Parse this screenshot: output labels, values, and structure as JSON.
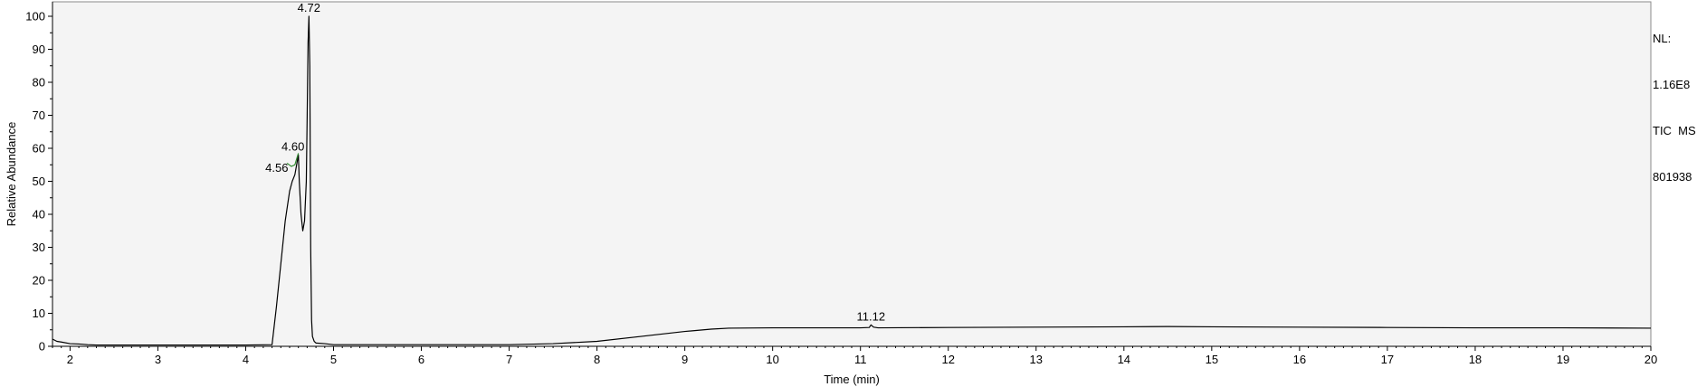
{
  "info": {
    "nl_label": "NL:",
    "nl_value": "1.16E8",
    "scan_filter": "TIC  MS",
    "sample": "801938"
  },
  "chart_data": {
    "type": "line",
    "title": "",
    "xlabel": "Time (min)",
    "ylabel": "Relative Abundance",
    "xlim": [
      1.8,
      20
    ],
    "ylim": [
      0,
      100
    ],
    "x_ticks": [
      2,
      3,
      4,
      5,
      6,
      7,
      8,
      9,
      10,
      11,
      12,
      13,
      14,
      15,
      16,
      17,
      18,
      19,
      20
    ],
    "y_ticks": [
      0,
      10,
      20,
      30,
      40,
      50,
      60,
      70,
      80,
      90,
      100
    ],
    "grid": false,
    "series": [
      {
        "color": "#000000",
        "x": [
          1.8,
          1.85,
          1.9,
          2.0,
          2.1,
          2.2,
          2.3,
          2.5,
          3.0,
          3.5,
          4.0,
          4.3,
          4.35,
          4.4,
          4.45,
          4.5,
          4.53,
          4.56,
          4.58,
          4.6,
          4.61,
          4.63,
          4.65,
          4.67,
          4.69,
          4.7,
          4.71,
          4.72,
          4.73,
          4.74,
          4.75,
          4.76,
          4.78,
          4.8,
          4.9,
          5.0,
          5.5,
          6.0,
          6.5,
          7.0,
          7.5,
          8.0,
          8.5,
          9.0,
          9.3,
          9.5,
          10.0,
          10.5,
          11.0,
          11.1,
          11.12,
          11.15,
          11.2,
          12.0,
          13.0,
          14.0,
          14.5,
          15.0,
          16.0,
          17.0,
          18.0,
          19.0,
          20.0
        ],
        "y": [
          2.2,
          1.5,
          1.3,
          0.8,
          0.7,
          0.5,
          0.4,
          0.4,
          0.4,
          0.4,
          0.4,
          0.5,
          12.0,
          25.0,
          38.0,
          47.0,
          50.0,
          52.0,
          55.0,
          58.0,
          50.0,
          40.0,
          35.0,
          38.0,
          50.0,
          70.0,
          92.0,
          100.0,
          85.0,
          30.0,
          8.0,
          3.0,
          1.5,
          1.0,
          0.8,
          0.5,
          0.5,
          0.5,
          0.5,
          0.5,
          0.8,
          1.5,
          3.0,
          4.5,
          5.2,
          5.5,
          5.6,
          5.6,
          5.6,
          5.7,
          6.5,
          5.8,
          5.6,
          5.7,
          5.8,
          5.9,
          6.0,
          5.9,
          5.8,
          5.7,
          5.6,
          5.6,
          5.5
        ]
      },
      {
        "color": "#2e8b2e",
        "x": [
          4.47,
          4.52,
          4.56,
          4.6
        ],
        "y": [
          55.5,
          54.5,
          55.0,
          58.5
        ]
      }
    ],
    "annotations": [
      {
        "text": "4.72",
        "x": 4.72,
        "y": 100
      },
      {
        "text": "4.60",
        "x": 4.6,
        "y": 58
      },
      {
        "text": "4.56",
        "x": 4.56,
        "y": 52
      },
      {
        "text": "11.12",
        "x": 11.12,
        "y": 6.5
      }
    ]
  }
}
